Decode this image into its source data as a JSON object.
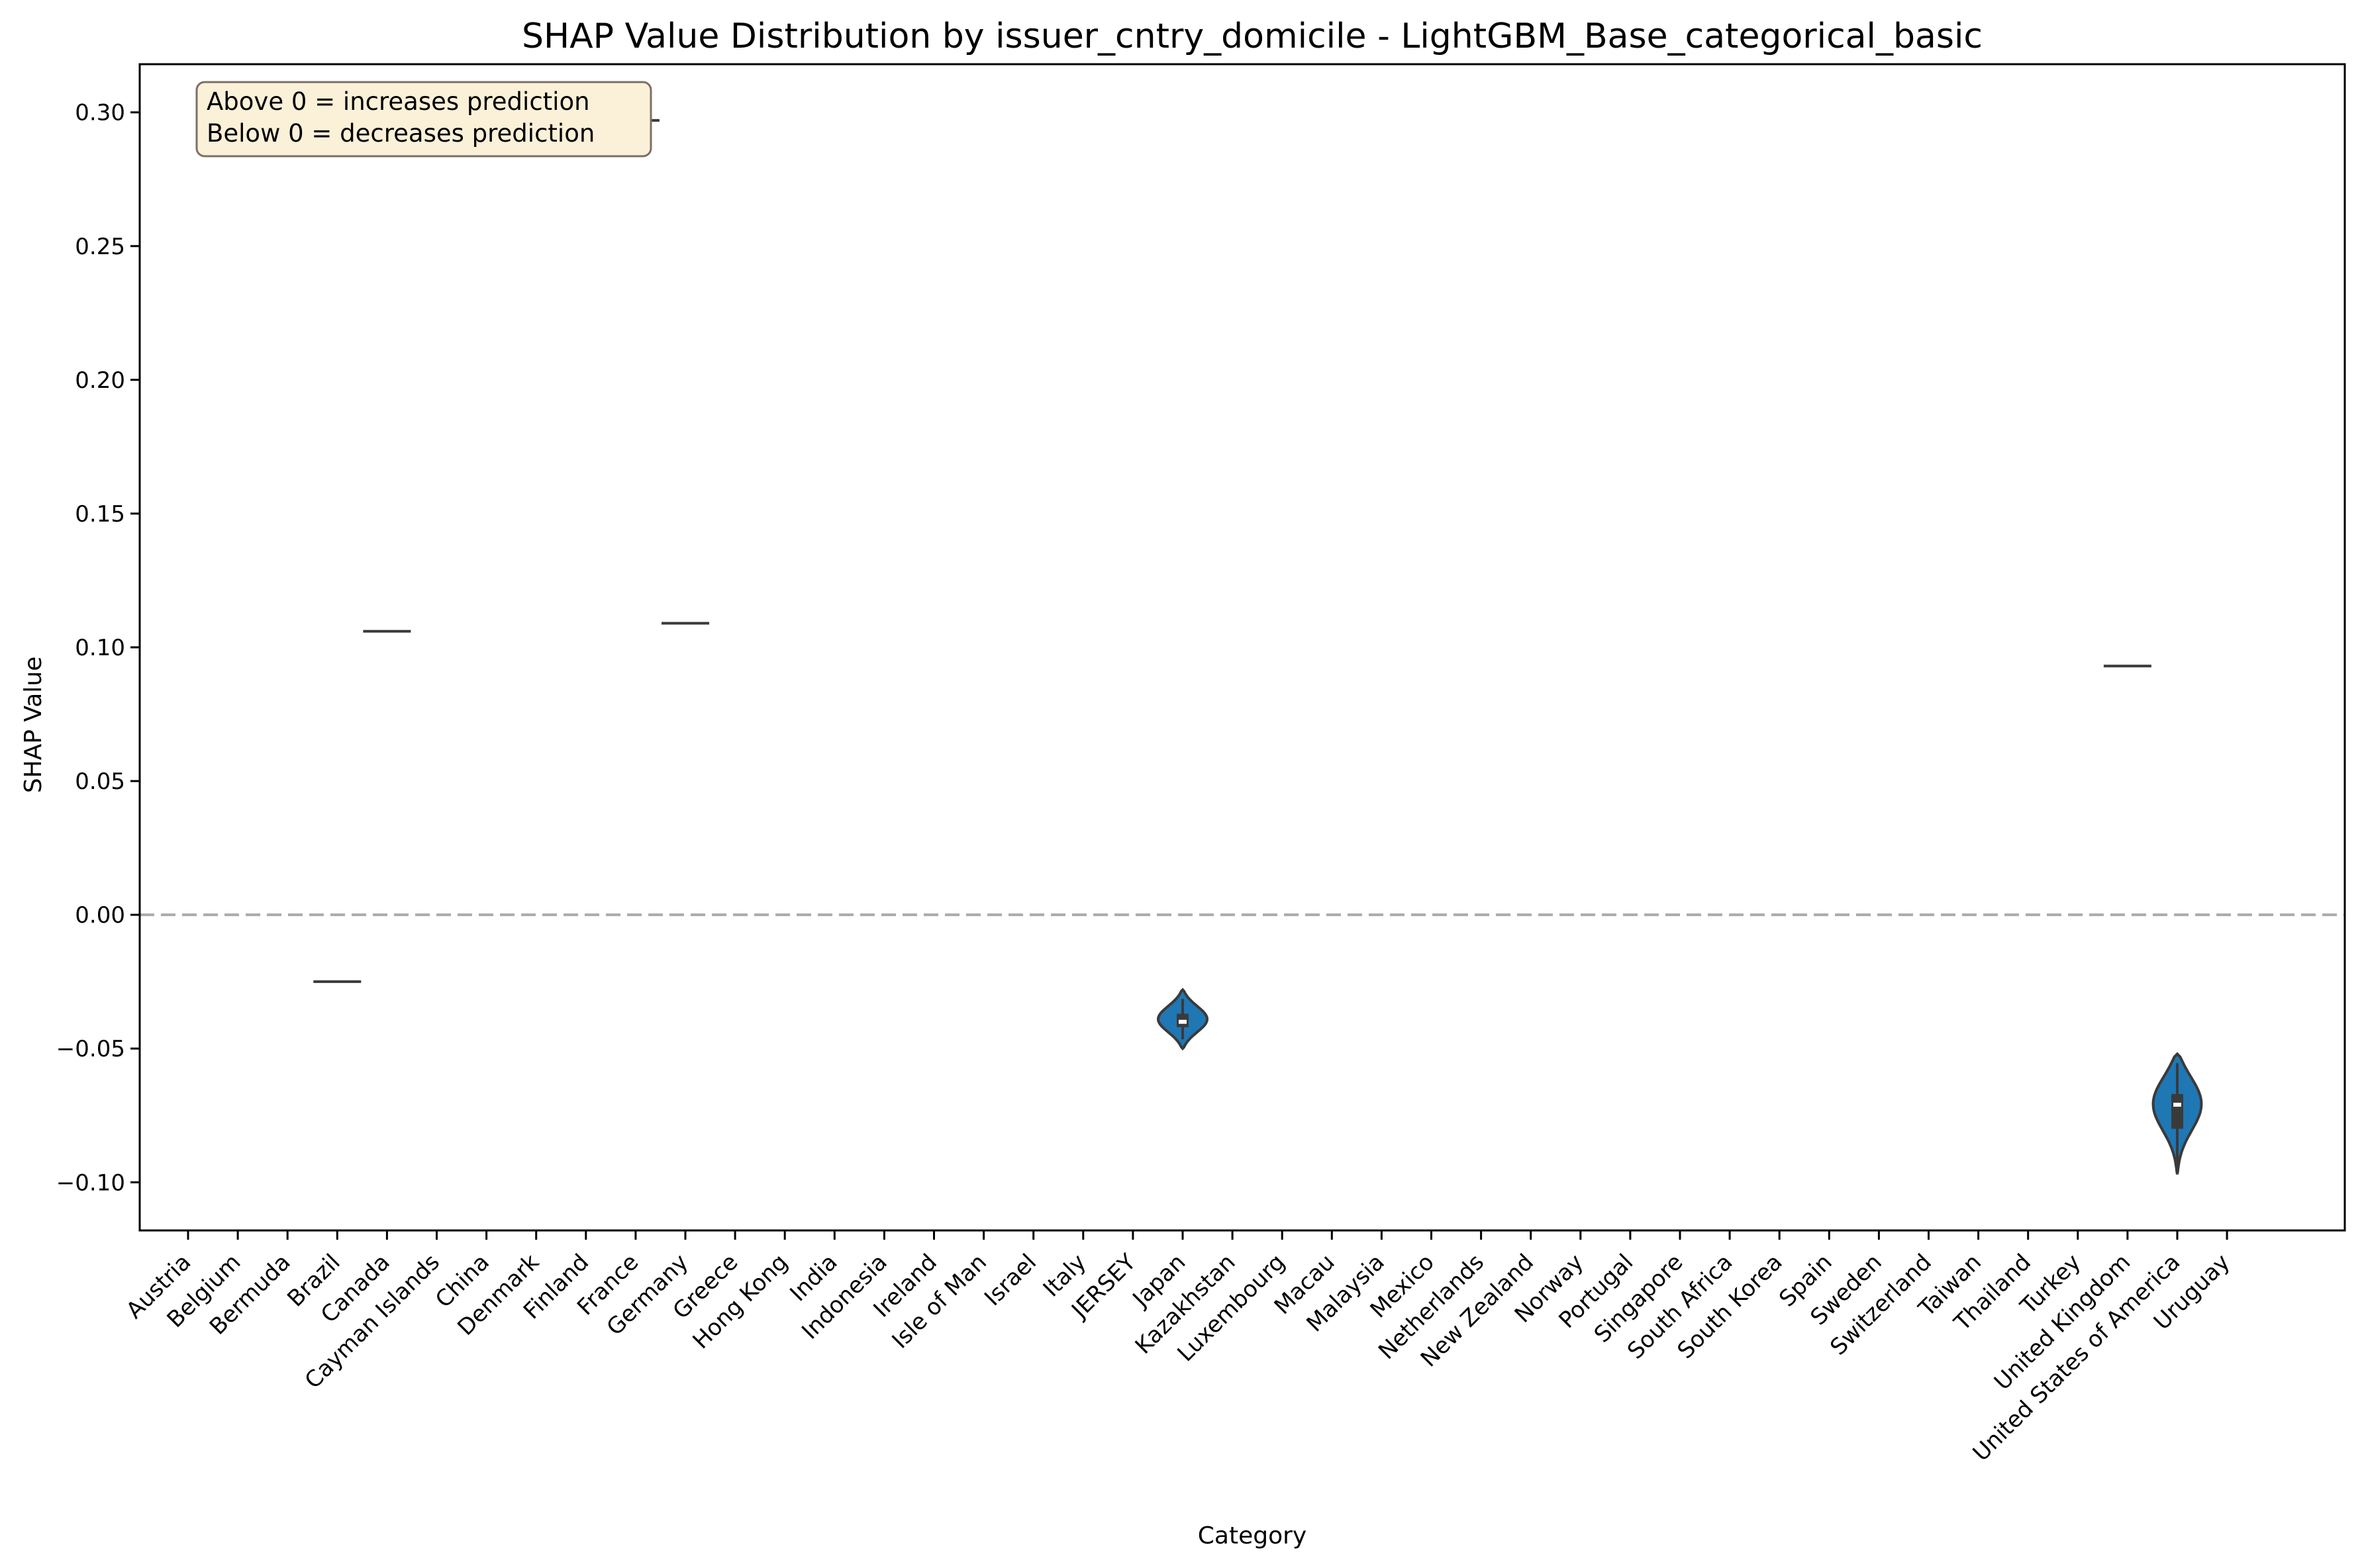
{
  "chart_data": {
    "type": "violin",
    "title": "SHAP Value Distribution by issuer_cntry_domicile - LightGBM_Base_categorical_basic",
    "xlabel": "Category",
    "ylabel": "SHAP Value",
    "ylim": [
      -0.118,
      0.318
    ],
    "yticks": [
      "0.30",
      "0.25",
      "0.20",
      "0.15",
      "0.10",
      "0.05",
      "0.00",
      "−0.05",
      "−0.10"
    ],
    "ytick_values": [
      0.3,
      0.25,
      0.2,
      0.15,
      0.1,
      0.05,
      0.0,
      -0.05,
      -0.1
    ],
    "reference_line": 0.0,
    "grid": false,
    "colors": {
      "violin_fill": "#1f77b4",
      "violin_edge": "#3a3a3a",
      "single_line": "#3a3a3a",
      "reference": "#aaaaaa",
      "annotation_bg": "#fbf0d8",
      "annotation_edge": "#7a7068"
    },
    "annotation": {
      "line1": "Above 0 = increases prediction",
      "line2": "Below 0 = decreases prediction",
      "placement": "top-left"
    },
    "categories": [
      "Austria",
      "Belgium",
      "Bermuda",
      "Brazil",
      "Canada",
      "Cayman Islands",
      "China",
      "Denmark",
      "Finland",
      "France",
      "Germany",
      "Greece",
      "Hong Kong",
      "India",
      "Indonesia",
      "Ireland",
      "Isle of Man",
      "Israel",
      "Italy",
      "JERSEY",
      "Japan",
      "Kazakhstan",
      "Luxembourg",
      "Macau",
      "Malaysia",
      "Mexico",
      "Netherlands",
      "New Zealand",
      "Norway",
      "Portugal",
      "Singapore",
      "South Africa",
      "South Korea",
      "Spain",
      "Sweden",
      "Switzerland",
      "Taiwan",
      "Thailand",
      "Turkey",
      "United Kingdom",
      "United States of America",
      "Uruguay"
    ],
    "series": [
      {
        "category": "Brazil",
        "kind": "single",
        "value": -0.025
      },
      {
        "category": "Canada",
        "kind": "single",
        "value": 0.106
      },
      {
        "category": "France",
        "kind": "single",
        "value": 0.297
      },
      {
        "category": "Germany",
        "kind": "single",
        "value": 0.109
      },
      {
        "category": "Japan",
        "kind": "violin",
        "min": -0.05,
        "max": -0.028,
        "q1": -0.042,
        "median": -0.04,
        "q3": -0.037,
        "mode": -0.039
      },
      {
        "category": "United Kingdom",
        "kind": "single",
        "value": 0.093
      },
      {
        "category": "United States of America",
        "kind": "violin",
        "min": -0.097,
        "max": -0.052,
        "q1": -0.08,
        "median": -0.071,
        "q3": -0.067,
        "mode": -0.07
      }
    ]
  }
}
